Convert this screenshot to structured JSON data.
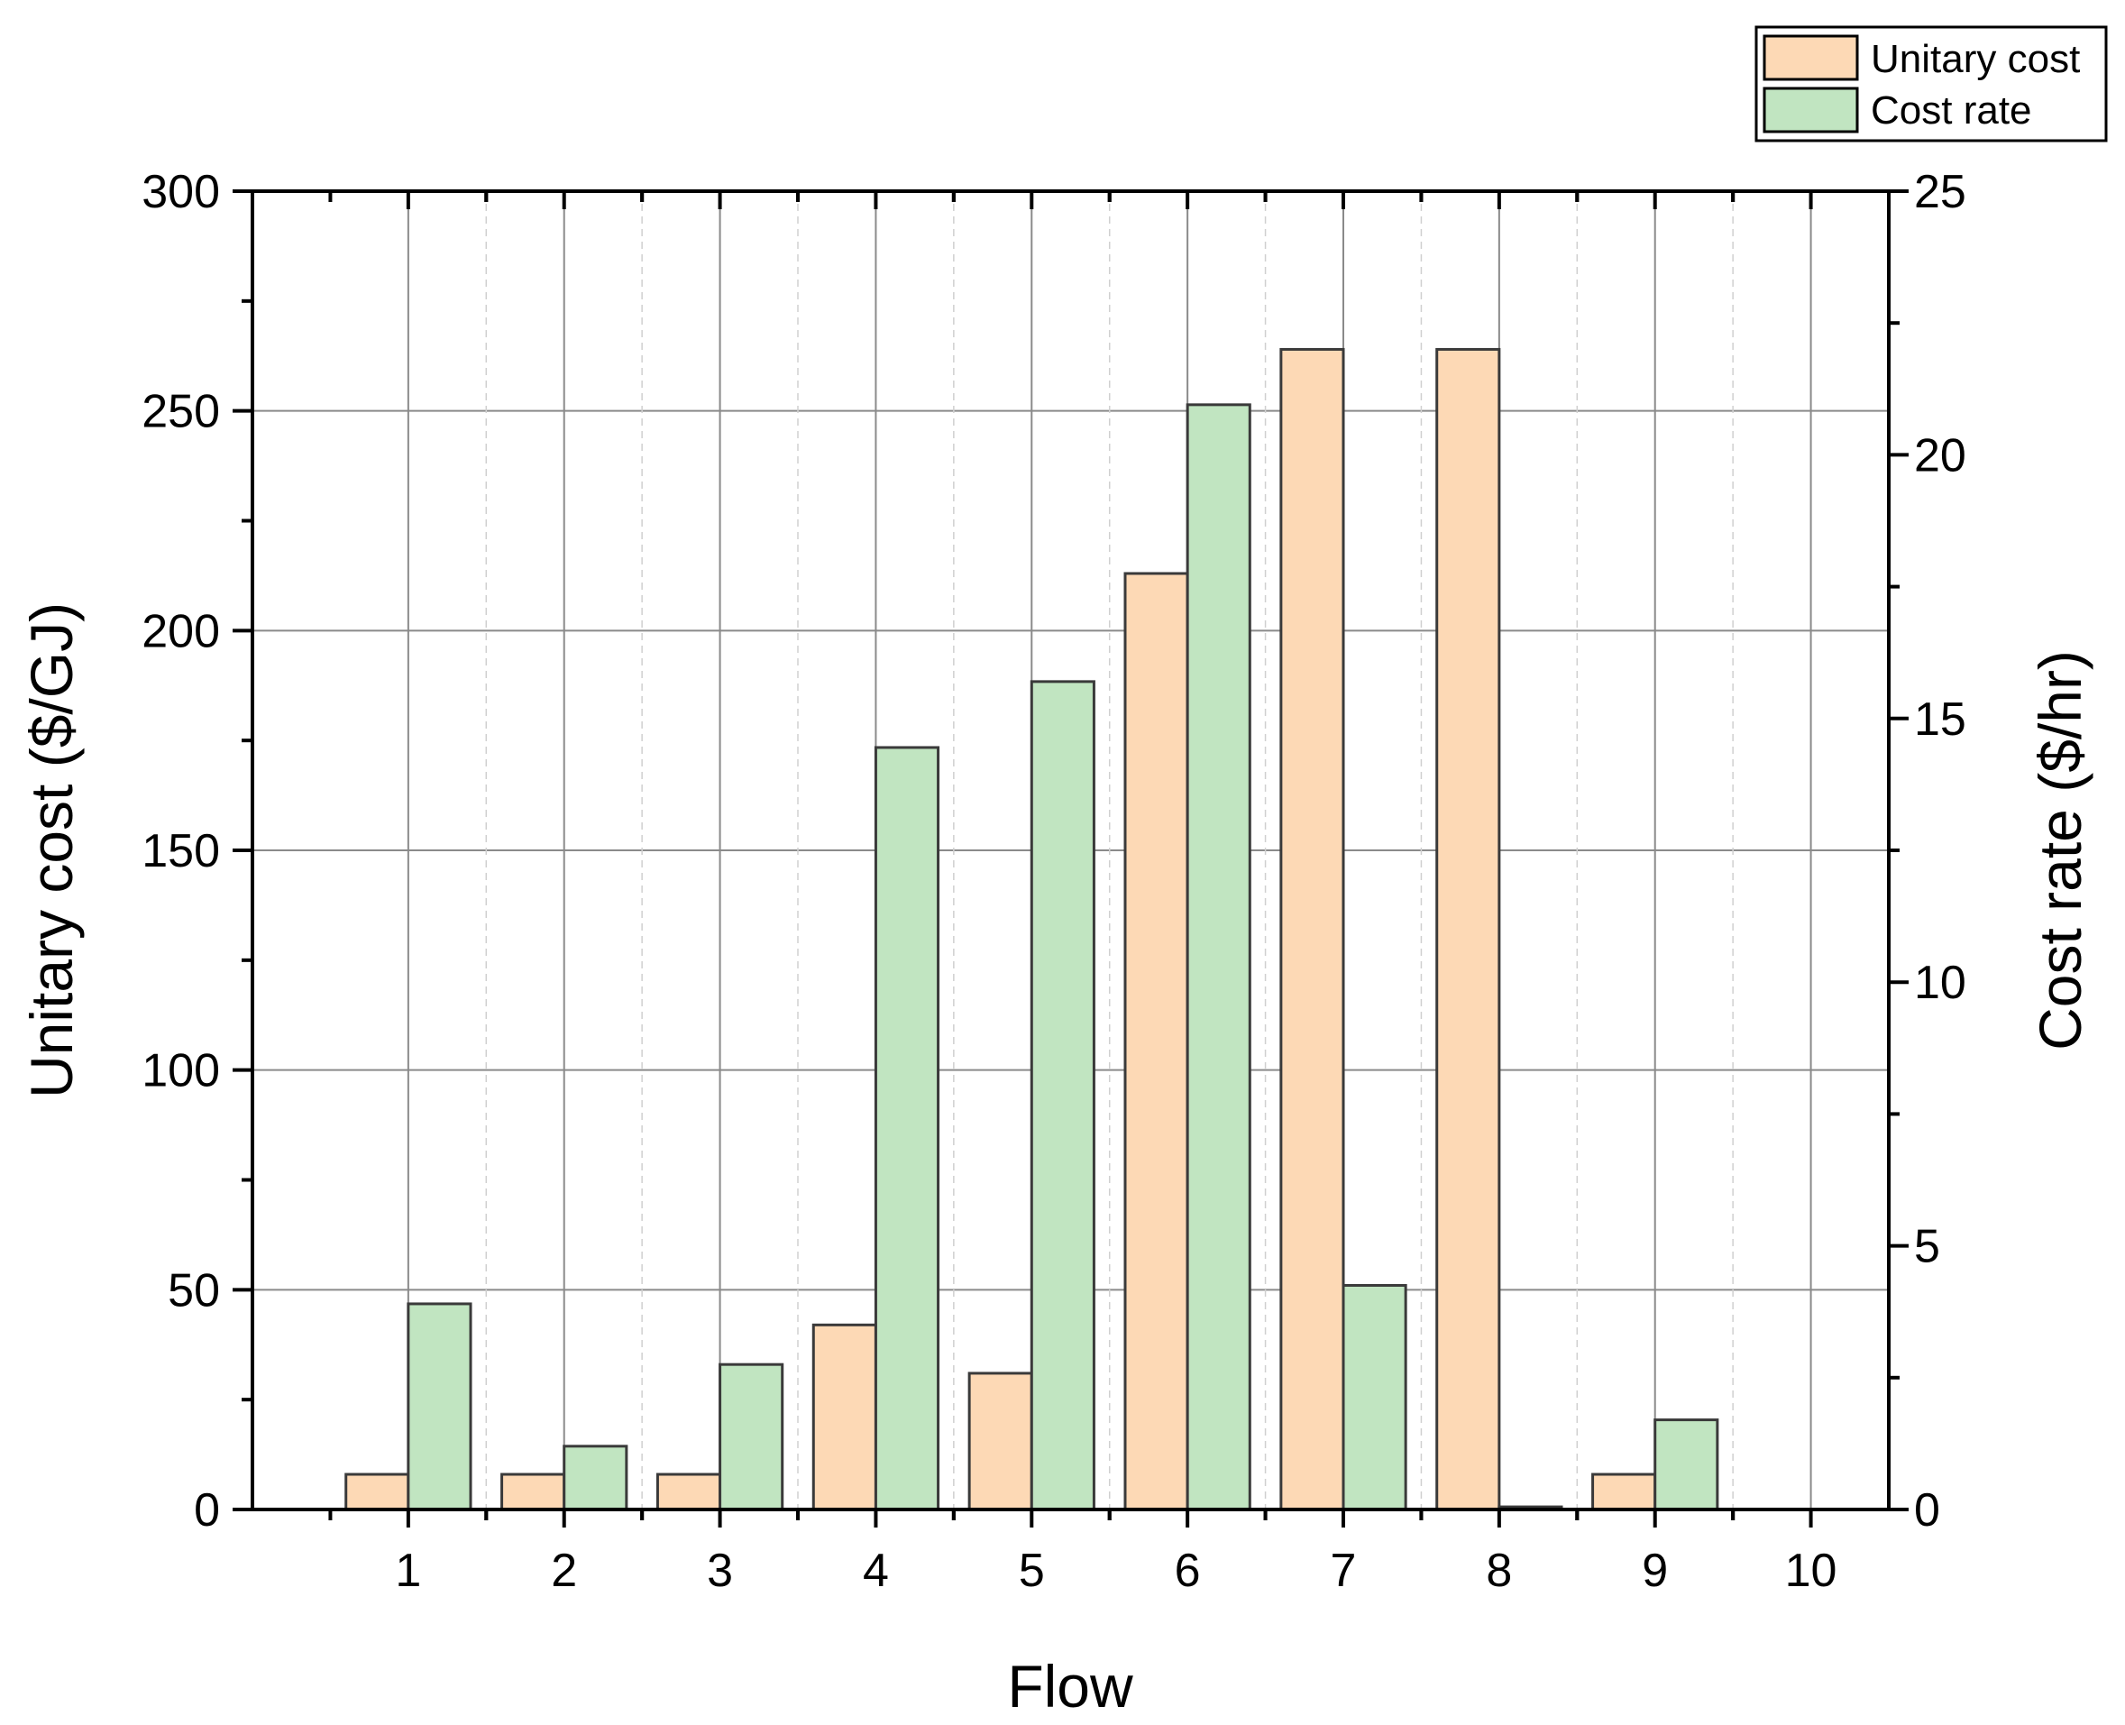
{
  "chart_data": {
    "type": "bar",
    "xlabel": "Flow",
    "ylabel_left": "Unitary cost ($/GJ)",
    "ylabel_right": "Cost rate ($/hr)",
    "categories": [
      "1",
      "2",
      "3",
      "4",
      "5",
      "6",
      "7",
      "8",
      "9",
      "10"
    ],
    "ylim_left": [
      0,
      300
    ],
    "ylim_right": [
      0,
      25
    ],
    "yticks_left": [
      "0",
      "50",
      "100",
      "150",
      "200",
      "250",
      "300"
    ],
    "yticks_right": [
      "0",
      "5",
      "10",
      "15",
      "20",
      "25"
    ],
    "grid": true,
    "legend_position": "top-right (outside plot)",
    "series": [
      {
        "name": "Unitary cost",
        "axis": "left",
        "color": "#fdd9b5",
        "values": [
          8,
          8,
          8,
          42,
          31,
          213,
          264,
          264,
          8,
          0
        ]
      },
      {
        "name": "Cost rate",
        "axis": "right",
        "color": "#c1e5c1",
        "values": [
          3.9,
          1.2,
          2.75,
          14.45,
          15.7,
          20.95,
          4.25,
          0.05,
          1.7,
          0
        ]
      }
    ]
  }
}
